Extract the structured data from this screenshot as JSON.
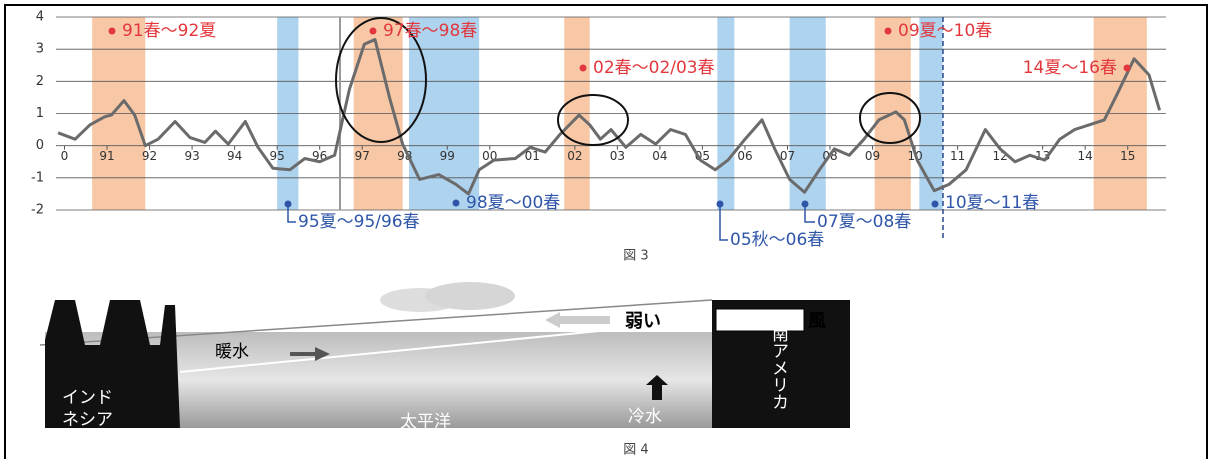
{
  "chart_data": {
    "type": "line",
    "color": "#6b6b6b",
    "x": [
      1989.85,
      1990.25,
      1990.6,
      1990.95,
      1991.1,
      1991.4,
      1991.65,
      1991.9,
      1992.2,
      1992.6,
      1992.95,
      1993.3,
      1993.55,
      1993.85,
      1994.25,
      1994.55,
      1994.9,
      1995.3,
      1995.65,
      1996,
      1996.35,
      1996.7,
      1997.05,
      1997.3,
      1997.65,
      1997.95,
      1998.35,
      1998.8,
      1999.2,
      1999.5,
      1999.75,
      2000.1,
      2000.6,
      2000.95,
      2001.3,
      2001.65,
      2002.1,
      2002.35,
      2002.6,
      2002.85,
      2003.2,
      2003.55,
      2003.9,
      2004.25,
      2004.6,
      2004.95,
      2005.3,
      2005.6,
      2006,
      2006.4,
      2006.7,
      2007.05,
      2007.4,
      2007.75,
      2008.1,
      2008.45,
      2008.8,
      2009.15,
      2009.55,
      2009.75,
      2010.05,
      2010.45,
      2010.8,
      2011.2,
      2011.65,
      2012,
      2012.35,
      2012.7,
      2013.05,
      2013.4,
      2013.75,
      2014.1,
      2014.45,
      2014.75,
      2015.15,
      2015.5,
      2015.75
    ],
    "values": [
      0.4,
      0.2,
      0.65,
      0.9,
      0.95,
      1.4,
      0.95,
      0,
      0.2,
      0.75,
      0.25,
      0.1,
      0.45,
      0.05,
      0.75,
      -0.05,
      -0.7,
      -0.75,
      -0.4,
      -0.5,
      -0.3,
      1.75,
      3.15,
      3.3,
      1.45,
      0.05,
      -1.05,
      -0.9,
      -1.2,
      -1.5,
      -0.75,
      -0.45,
      -0.4,
      -0.05,
      -0.2,
      0.35,
      0.95,
      0.65,
      0.2,
      0.5,
      -0.05,
      0.35,
      0.05,
      0.5,
      0.35,
      -0.45,
      -0.75,
      -0.45,
      0.2,
      0.8,
      -0.1,
      -1.05,
      -1.45,
      -0.75,
      -0.1,
      -0.3,
      0.2,
      0.8,
      1.05,
      0.8,
      -0.45,
      -1.4,
      -1.2,
      -0.75,
      0.5,
      -0.1,
      -0.5,
      -0.3,
      -0.45,
      0.2,
      0.5,
      0.65,
      0.8,
      1.6,
      2.7,
      2.2,
      1.1
    ],
    "xlim": [
      1989.8,
      2015.9
    ],
    "xticks": [
      {
        "value": 1990,
        "label": "0"
      },
      {
        "value": 1991,
        "label": "91"
      },
      {
        "value": 1992,
        "label": "92"
      },
      {
        "value": 1993,
        "label": "93"
      },
      {
        "value": 1994,
        "label": "94"
      },
      {
        "value": 1995,
        "label": "95"
      },
      {
        "value": 1996,
        "label": "96"
      },
      {
        "value": 1997,
        "label": "97"
      },
      {
        "value": 1998,
        "label": "98"
      },
      {
        "value": 1999,
        "label": "99"
      },
      {
        "value": 2000,
        "label": "00"
      },
      {
        "value": 2001,
        "label": "01"
      },
      {
        "value": 2002,
        "label": "02"
      },
      {
        "value": 2003,
        "label": "03"
      },
      {
        "value": 2004,
        "label": "04"
      },
      {
        "value": 2005,
        "label": "05"
      },
      {
        "value": 2006,
        "label": "06"
      },
      {
        "value": 2007,
        "label": "07"
      },
      {
        "value": 2008,
        "label": "08"
      },
      {
        "value": 2009,
        "label": "09"
      },
      {
        "value": 2010,
        "label": "10"
      },
      {
        "value": 2011,
        "label": "11"
      },
      {
        "value": 2012,
        "label": "12"
      },
      {
        "value": 2013,
        "label": "13"
      },
      {
        "value": 2014,
        "label": "14"
      },
      {
        "value": 2015,
        "label": "15"
      }
    ],
    "ylim": [
      -2,
      4
    ],
    "yticks": [
      -2,
      -1,
      0,
      1,
      2,
      3,
      4
    ],
    "grid": true,
    "periods": [
      {
        "label": "91春〜92夏",
        "start": 1990.65,
        "end": 1991.9,
        "color": "#f8c8a6"
      },
      {
        "label": "97春〜98春",
        "start": 1996.8,
        "end": 1997.95,
        "color": "#f8c8a6"
      },
      {
        "label": "02春〜02/03春",
        "start": 2001.75,
        "end": 2002.35,
        "color": "#f8c8a6"
      },
      {
        "label": "09夏〜10春",
        "start": 2009.05,
        "end": 2009.9,
        "color": "#f8c8a6"
      },
      {
        "label": "14夏〜16春",
        "start": 2014.2,
        "end": 2015.45,
        "color": "#f8c8a6"
      },
      {
        "label": "95夏〜95/96春",
        "start": 1995.0,
        "end": 1995.5,
        "color": "#aed3ee"
      },
      {
        "label": "98夏〜00春",
        "start": 1998.1,
        "end": 1999.75,
        "color": "#aed3ee"
      },
      {
        "label": "05秋〜06春",
        "start": 2005.35,
        "end": 2005.75,
        "color": "#aed3ee"
      },
      {
        "label": "07夏〜08春",
        "start": 2007.05,
        "end": 2007.9,
        "color": "#aed3ee"
      },
      {
        "label": "10夏〜11春",
        "start": 2010.1,
        "end": 2010.65,
        "color": "#aed3ee"
      }
    ],
    "caption": "図 3"
  },
  "figure4": {
    "wind_left": "弱い",
    "wind_right": "風",
    "warm": "暖水",
    "indonesia": [
      "インド",
      "ネシア"
    ],
    "pacific": "太平洋",
    "cold": "冷水",
    "south_america": "南アメリカ",
    "caption": "図 4"
  }
}
